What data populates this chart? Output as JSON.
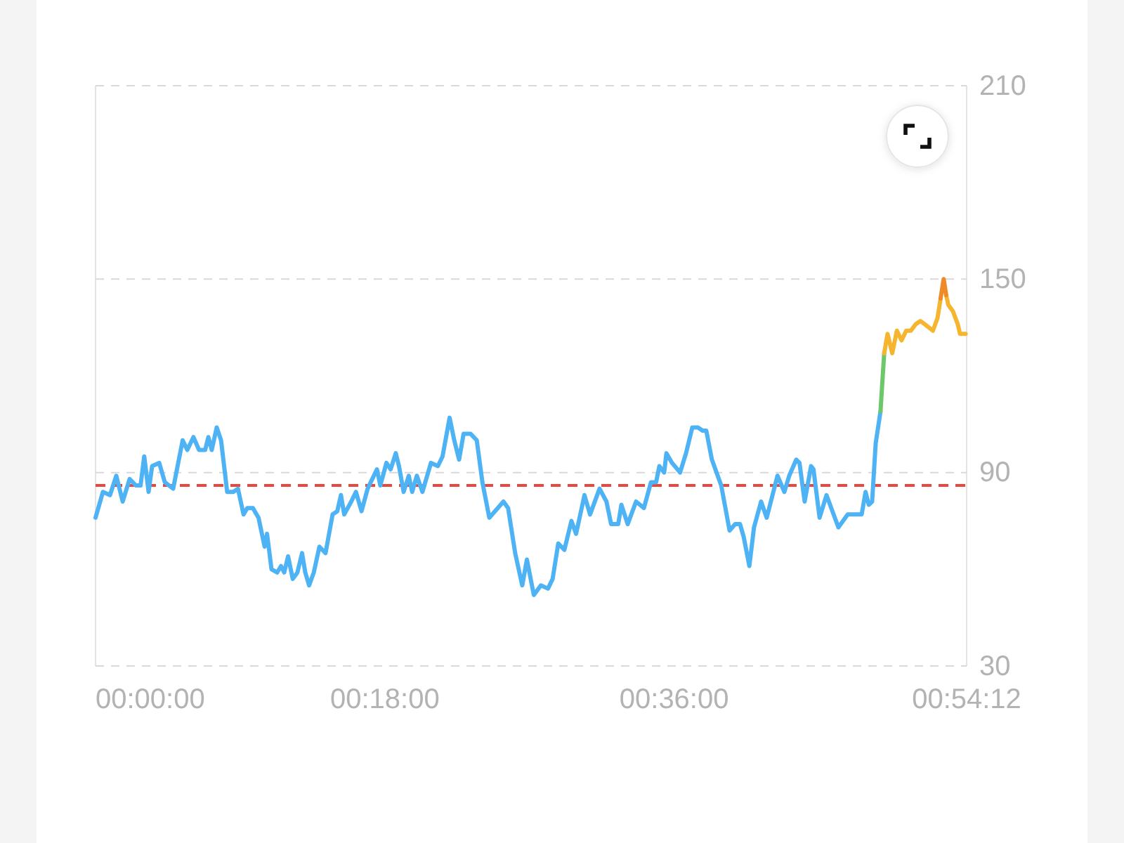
{
  "chart_data": {
    "type": "line",
    "series": [
      {
        "color": "#4eb3f5",
        "x": [
          0.0,
          0.46,
          0.9,
          1.29,
          1.69,
          2.12,
          2.51,
          2.8,
          3.03,
          3.3,
          3.52,
          3.96,
          4.31,
          4.83,
          5.42,
          5.71,
          6.09,
          6.44,
          6.82,
          7.02,
          7.23,
          7.54,
          7.81,
          8.19,
          8.57,
          8.86,
          9.21,
          9.44,
          9.79,
          10.14,
          10.52,
          10.67,
          10.95,
          11.3,
          11.54,
          11.74,
          11.98,
          12.27,
          12.56,
          12.85,
          13.05,
          13.29,
          13.58,
          13.93,
          14.31,
          14.75,
          15.04,
          15.27,
          15.47,
          15.91,
          16.2,
          16.55,
          16.93,
          17.51,
          17.72,
          18.1,
          18.36,
          18.68,
          18.88,
          19.17,
          19.49,
          19.7,
          19.99,
          20.34,
          20.87,
          21.3,
          21.59,
          22.03,
          22.32,
          22.62,
          22.9,
          23.34,
          23.72,
          24.07,
          24.5,
          25.38,
          25.67,
          26.11,
          26.55,
          26.84,
          27.27,
          27.71,
          28.15,
          28.44,
          28.79,
          29.17,
          29.61,
          29.9,
          30.42,
          30.77,
          31.36,
          31.79,
          32.08,
          32.52,
          32.72,
          33.11,
          33.63,
          34.12,
          34.56,
          34.88,
          35.08,
          35.38,
          35.52,
          35.87,
          36.37,
          36.74,
          37.13,
          37.48,
          37.77,
          38.0,
          38.35,
          38.93,
          39.45,
          39.8,
          40.1,
          40.33,
          40.68,
          40.97,
          41.41,
          41.76,
          42.43,
          42.86,
          43.16,
          43.6,
          43.8,
          44.12,
          44.52,
          44.67,
          45.05,
          45.48,
          46.22,
          46.8,
          47.67,
          47.91,
          48.11,
          48.32,
          48.54,
          48.84
        ],
        "values": [
          76,
          84,
          83,
          89,
          81,
          88,
          86,
          86,
          95,
          84,
          92,
          93,
          87,
          85,
          100,
          97,
          101,
          97,
          97,
          101,
          97,
          104,
          100,
          84,
          84,
          85,
          77,
          79,
          79,
          76,
          67,
          71,
          60,
          59,
          61,
          59,
          64,
          57,
          59,
          65,
          59,
          55,
          59,
          67,
          65,
          77,
          78,
          83,
          77,
          81,
          84,
          78,
          85,
          91,
          86,
          93,
          91,
          96,
          92,
          84,
          89,
          84,
          89,
          84,
          93,
          92,
          95,
          107,
          100,
          94,
          102,
          102,
          100,
          87,
          76,
          81,
          79,
          65,
          55,
          63,
          52,
          55,
          54,
          57,
          68,
          66,
          75,
          71,
          83,
          77,
          85,
          81,
          74,
          74,
          80,
          74,
          81,
          79,
          87,
          87,
          92,
          90,
          96,
          93,
          90,
          96,
          104,
          104,
          103,
          103,
          94,
          86,
          72,
          74,
          74,
          70,
          61,
          73,
          81,
          76,
          89,
          84,
          89,
          94,
          93,
          81,
          92,
          91,
          76,
          83,
          73,
          77,
          77,
          84,
          80,
          81,
          99,
          109
        ]
      },
      {
        "color": "#6cc86a",
        "x": [
          48.84,
          49.07
        ],
        "values": [
          109,
          127
        ]
      },
      {
        "color": "#f6b52f",
        "x": [
          49.07,
          49.28,
          49.57,
          49.86,
          50.15,
          50.44,
          50.73,
          51.03,
          51.32,
          51.6,
          52.1,
          52.39,
          52.58,
          52.77,
          52.93,
          53.06,
          53.35,
          53.65,
          53.79,
          54.14
        ],
        "values": [
          127,
          133,
          127,
          134,
          131,
          134,
          134,
          136,
          137,
          136,
          134,
          138,
          144,
          null,
          145,
          142,
          140,
          136,
          133,
          133
        ]
      },
      {
        "color": "#ef8b26",
        "x": [
          52.58,
          52.77,
          52.93
        ],
        "values": [
          144,
          150,
          145
        ]
      }
    ],
    "xlim": [
      0,
      54.2
    ],
    "xticks": [
      {
        "value": 0,
        "label": "00:00:00"
      },
      {
        "value": 18,
        "label": "00:18:00"
      },
      {
        "value": 36,
        "label": "00:36:00"
      },
      {
        "value": 54.2,
        "label": "00:54:12"
      }
    ],
    "ylim": [
      30,
      210
    ],
    "yticks": [
      30,
      90,
      150,
      210
    ],
    "grid": "y",
    "ref_lines": [
      {
        "axis": "y",
        "value": 86,
        "color": "#e8473e",
        "line_style": "dashed"
      }
    ]
  }
}
